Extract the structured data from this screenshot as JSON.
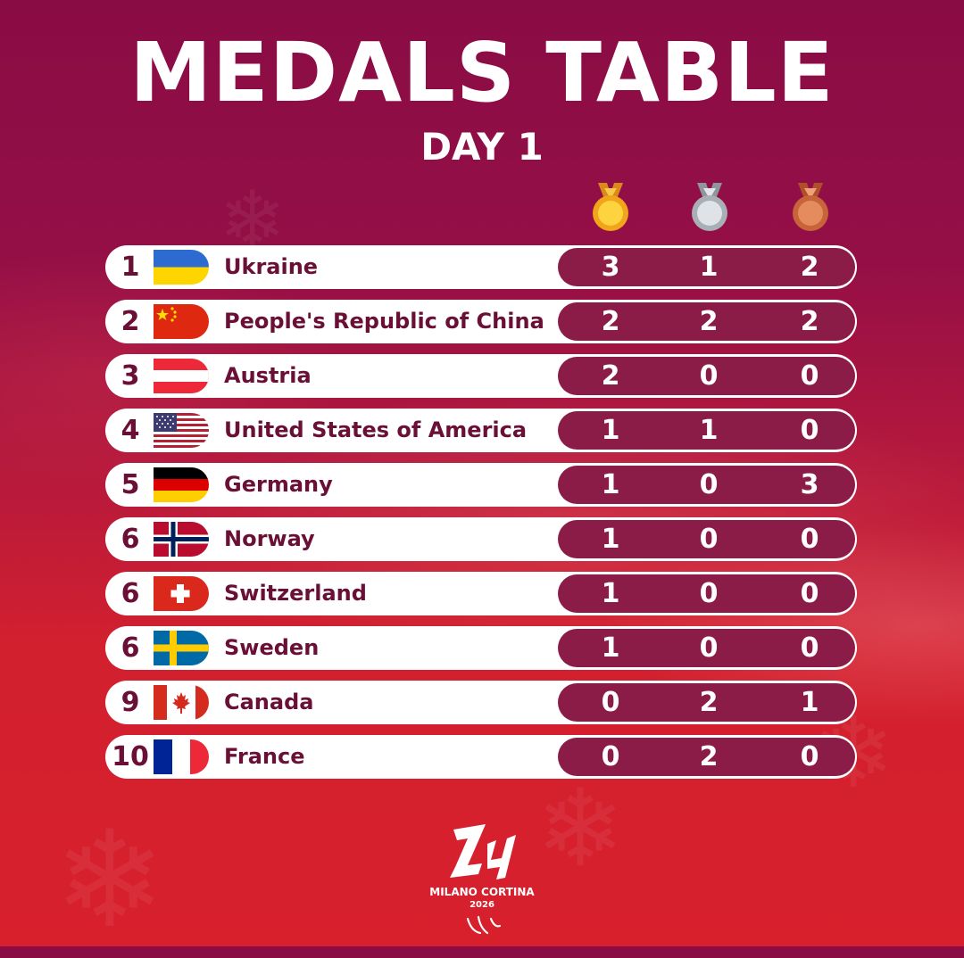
{
  "header": {
    "title": "MEDALS TABLE",
    "subtitle": "DAY 1"
  },
  "medal_icons": [
    "gold-medal-icon",
    "silver-medal-icon",
    "bronze-medal-icon"
  ],
  "colors": {
    "background_top": "#8a0c45",
    "background_bottom": "#d8202d",
    "row_text": "#6a0f36",
    "count_pill": "#8a1c47",
    "gold": "#f5b91c",
    "silver": "#c9ccd1",
    "bronze": "#d97a4a"
  },
  "rows": [
    {
      "rank": "1",
      "country": "Ukraine",
      "flag": "ukraine-flag-icon",
      "gold": "3",
      "silver": "1",
      "bronze": "2"
    },
    {
      "rank": "2",
      "country": "People's Republic of China",
      "flag": "china-flag-icon",
      "gold": "2",
      "silver": "2",
      "bronze": "2"
    },
    {
      "rank": "3",
      "country": "Austria",
      "flag": "austria-flag-icon",
      "gold": "2",
      "silver": "0",
      "bronze": "0"
    },
    {
      "rank": "4",
      "country": "United States of America",
      "flag": "usa-flag-icon",
      "gold": "1",
      "silver": "1",
      "bronze": "0"
    },
    {
      "rank": "5",
      "country": "Germany",
      "flag": "germany-flag-icon",
      "gold": "1",
      "silver": "0",
      "bronze": "3"
    },
    {
      "rank": "6",
      "country": "Norway",
      "flag": "norway-flag-icon",
      "gold": "1",
      "silver": "0",
      "bronze": "0"
    },
    {
      "rank": "6",
      "country": "Switzerland",
      "flag": "switzerland-flag-icon",
      "gold": "1",
      "silver": "0",
      "bronze": "0"
    },
    {
      "rank": "6",
      "country": "Sweden",
      "flag": "sweden-flag-icon",
      "gold": "1",
      "silver": "0",
      "bronze": "0"
    },
    {
      "rank": "9",
      "country": "Canada",
      "flag": "canada-flag-icon",
      "gold": "0",
      "silver": "2",
      "bronze": "1"
    },
    {
      "rank": "10",
      "country": "France",
      "flag": "france-flag-icon",
      "gold": "0",
      "silver": "2",
      "bronze": "0"
    }
  ],
  "logo": {
    "mark": "milano-cortina-2026-logo",
    "line1": "MILANO CORTINA",
    "line2": "2026"
  }
}
